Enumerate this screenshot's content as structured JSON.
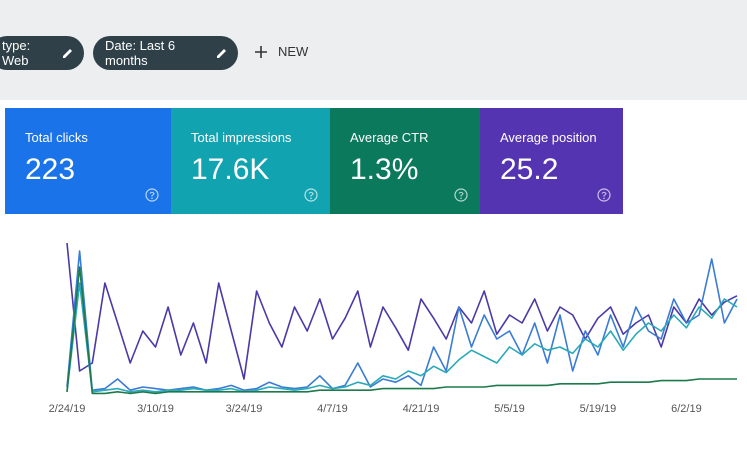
{
  "toolbar": {
    "filters": [
      "type: Web",
      "Date: Last 6 months"
    ],
    "new_button": "NEW"
  },
  "metrics": [
    {
      "label": "Total clicks",
      "value": "223",
      "color": "#1a73e8"
    },
    {
      "label": "Total impressions",
      "value": "17.6K",
      "color": "#12a3b0"
    },
    {
      "label": "Average CTR",
      "value": "1.3%",
      "color": "#0b7a5c"
    },
    {
      "label": "Average position",
      "value": "25.2",
      "color": "#5434b0"
    }
  ],
  "chart_data": {
    "type": "line",
    "x": [
      "2/24/19",
      null,
      null,
      null,
      null,
      null,
      null,
      "3/10/19",
      null,
      null,
      null,
      null,
      null,
      null,
      "3/24/19",
      null,
      null,
      null,
      null,
      null,
      null,
      "4/7/19",
      null,
      null,
      null,
      null,
      null,
      null,
      "4/21/19",
      null,
      null,
      null,
      null,
      null,
      null,
      "5/5/19",
      null,
      null,
      null,
      null,
      null,
      null,
      "5/19/19",
      null,
      null,
      null,
      null,
      null,
      null,
      "6/2/19",
      null,
      null,
      null,
      null
    ],
    "ylim": [
      0,
      100
    ],
    "series": [
      {
        "color": "#4a3aa8",
        "values": [
          95,
          15,
          20,
          70,
          45,
          20,
          40,
          30,
          55,
          25,
          45,
          20,
          70,
          40,
          10,
          65,
          45,
          30,
          55,
          40,
          60,
          35,
          48,
          65,
          30,
          55,
          42,
          28,
          60,
          48,
          35,
          55,
          45,
          65,
          38,
          50,
          45,
          60,
          40,
          55,
          50,
          35,
          48,
          55,
          38,
          45,
          50,
          30,
          55,
          45,
          60,
          50,
          58,
          62
        ]
      },
      {
        "color": "#3a7bd5",
        "values": [
          5,
          90,
          3,
          4,
          10,
          3,
          5,
          4,
          3,
          4,
          5,
          3,
          4,
          6,
          3,
          4,
          8,
          5,
          4,
          5,
          12,
          4,
          6,
          20,
          5,
          10,
          8,
          12,
          6,
          30,
          15,
          55,
          30,
          50,
          35,
          40,
          25,
          45,
          20,
          50,
          15,
          40,
          25,
          50,
          30,
          55,
          40,
          35,
          60,
          45,
          50,
          85,
          45,
          60
        ]
      },
      {
        "color": "#2aa9b8",
        "values": [
          2,
          70,
          2,
          3,
          4,
          2,
          3,
          2,
          3,
          3,
          4,
          3,
          3,
          4,
          2,
          3,
          5,
          4,
          3,
          4,
          6,
          4,
          5,
          8,
          6,
          12,
          10,
          15,
          12,
          18,
          14,
          22,
          28,
          24,
          20,
          30,
          25,
          32,
          28,
          30,
          26,
          35,
          30,
          40,
          28,
          38,
          45,
          40,
          50,
          42,
          55,
          48,
          60,
          55
        ]
      },
      {
        "color": "#1e7a4a",
        "values": [
          2,
          80,
          1,
          1,
          2,
          1,
          2,
          1,
          2,
          2,
          2,
          2,
          2,
          2,
          2,
          2,
          2,
          2,
          2,
          2,
          3,
          3,
          3,
          3,
          3,
          4,
          4,
          4,
          4,
          4,
          5,
          5,
          5,
          5,
          6,
          6,
          6,
          6,
          6,
          7,
          7,
          7,
          7,
          8,
          8,
          8,
          8,
          9,
          9,
          9,
          10,
          10,
          10,
          10
        ]
      }
    ]
  }
}
